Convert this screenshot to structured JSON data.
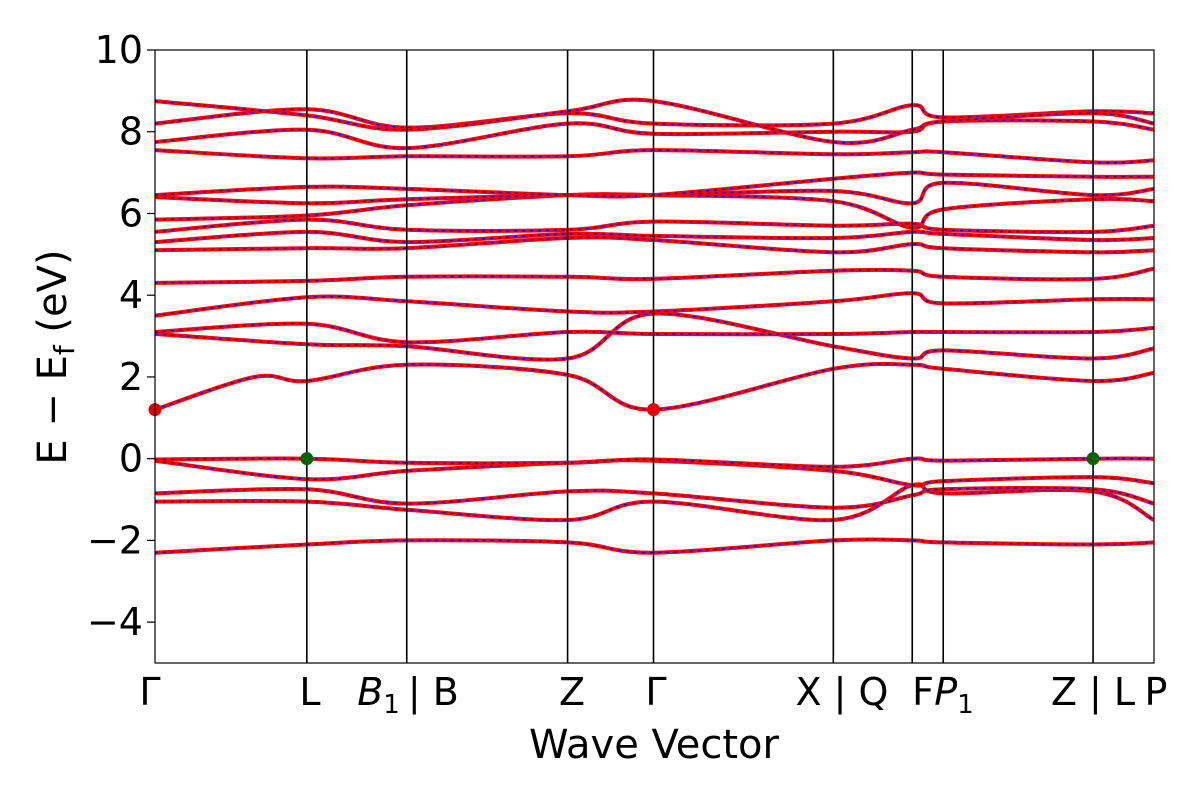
{
  "chart_data": {
    "type": "line",
    "title": "",
    "xlabel": "Wave Vector",
    "ylabel_main": "E − E",
    "ylabel_sub": "f",
    "ylabel_unit": " (eV)",
    "ylim": [
      -5,
      10
    ],
    "yticks": [
      "−4",
      "−2",
      "0",
      "2",
      "4",
      "6",
      "8",
      "10"
    ],
    "ytick_values": [
      -4,
      -2,
      0,
      2,
      4,
      6,
      8,
      10
    ],
    "xlim": [
      0,
      10
    ],
    "kpoints": [
      {
        "label": "Γ",
        "x": 0.0
      },
      {
        "label": "L",
        "x": 1.52
      },
      {
        "label": "B₁ | B",
        "x": 2.52
      },
      {
        "label": "Z",
        "x": 4.13
      },
      {
        "label": "Γ",
        "x": 4.99
      },
      {
        "label": "X | Q",
        "x": 6.79
      },
      {
        "label": "F",
        "x": 7.58
      },
      {
        "label": "P₁",
        "x": 7.89
      },
      {
        "label": "Z | L",
        "x": 9.39
      },
      {
        "label": "P",
        "x": 10.0
      }
    ],
    "kpoint_text": [
      "Γ",
      "L",
      "B",
      "1",
      "| B",
      "Z",
      "Γ",
      "X | Q",
      "F",
      "P",
      "1",
      "Z | L",
      "P"
    ],
    "series_style": {
      "outer_color": "#ff0000",
      "inner_color": "#0000ff"
    },
    "bands": [
      {
        "x": [
          0,
          1.52,
          2.52,
          4.13,
          4.99,
          6.79,
          7.58,
          7.89,
          9.39,
          10
        ],
        "y": [
          -2.3,
          -2.1,
          -2.0,
          -2.05,
          -2.3,
          -2.0,
          -2.0,
          -2.05,
          -2.1,
          -2.05
        ]
      },
      {
        "x": [
          0,
          1.52,
          2.52,
          4.13,
          4.99,
          6.79,
          7.58,
          7.89,
          9.39,
          10
        ],
        "y": [
          -1.05,
          -1.05,
          -1.25,
          -1.5,
          -1.05,
          -1.5,
          -0.65,
          -0.85,
          -0.8,
          -1.5
        ]
      },
      {
        "x": [
          0,
          1.52,
          2.52,
          4.13,
          4.99,
          6.79,
          7.58,
          7.89,
          9.39,
          10
        ],
        "y": [
          -0.85,
          -0.75,
          -1.1,
          -0.8,
          -0.85,
          -1.2,
          -0.9,
          -0.75,
          -0.75,
          -1.1
        ]
      },
      {
        "x": [
          0,
          1.52,
          2.52,
          4.13,
          4.99,
          6.79,
          7.58,
          7.89,
          9.39,
          10
        ],
        "y": [
          -0.05,
          -0.5,
          -0.3,
          -0.1,
          -0.05,
          -0.3,
          -0.65,
          -0.55,
          -0.45,
          -0.6
        ]
      },
      {
        "x": [
          0,
          1.52,
          2.52,
          4.13,
          4.99,
          6.79,
          7.58,
          7.89,
          9.39,
          10
        ],
        "y": [
          -0.02,
          0.0,
          -0.1,
          -0.1,
          -0.02,
          -0.2,
          0.0,
          -0.05,
          0.0,
          0.0
        ]
      },
      {
        "x": [
          0,
          1.0,
          1.52,
          2.52,
          4.13,
          4.99,
          6.79,
          7.58,
          7.89,
          9.39,
          10
        ],
        "y": [
          1.2,
          2.0,
          1.9,
          2.3,
          2.05,
          1.2,
          2.2,
          2.3,
          2.2,
          1.9,
          2.1
        ]
      },
      {
        "x": [
          0,
          1.52,
          2.52,
          4.13,
          4.99,
          6.79,
          7.58,
          7.89,
          9.39,
          10
        ],
        "y": [
          3.05,
          2.8,
          2.75,
          2.45,
          3.55,
          2.75,
          2.45,
          2.65,
          2.45,
          2.7
        ]
      },
      {
        "x": [
          0,
          1.52,
          2.52,
          4.13,
          4.99,
          6.79,
          7.58,
          7.89,
          9.39,
          10
        ],
        "y": [
          3.1,
          3.3,
          2.85,
          3.1,
          3.05,
          3.05,
          3.1,
          3.1,
          3.1,
          3.2
        ]
      },
      {
        "x": [
          0,
          1.52,
          2.52,
          4.13,
          4.99,
          6.79,
          7.58,
          7.89,
          9.39,
          10
        ],
        "y": [
          3.5,
          3.95,
          3.85,
          3.6,
          3.6,
          3.85,
          4.05,
          3.8,
          3.9,
          3.9
        ]
      },
      {
        "x": [
          0,
          1.52,
          2.52,
          4.13,
          4.99,
          6.79,
          7.58,
          7.89,
          9.39,
          10
        ],
        "y": [
          4.3,
          4.35,
          4.45,
          4.45,
          4.4,
          4.6,
          4.6,
          4.45,
          4.4,
          4.65
        ]
      },
      {
        "x": [
          0,
          1.52,
          2.52,
          4.13,
          4.99,
          6.79,
          7.58,
          7.89,
          9.39,
          10
        ],
        "y": [
          5.1,
          5.15,
          5.15,
          5.4,
          5.35,
          5.05,
          5.25,
          5.15,
          5.05,
          5.1
        ]
      },
      {
        "x": [
          0,
          1.52,
          2.52,
          4.13,
          4.99,
          6.79,
          7.58,
          7.89,
          9.39,
          10
        ],
        "y": [
          5.3,
          5.55,
          5.3,
          5.5,
          5.45,
          5.4,
          5.55,
          5.5,
          5.35,
          5.4
        ]
      },
      {
        "x": [
          0,
          1.52,
          2.52,
          4.13,
          4.99,
          6.79,
          7.58,
          7.89,
          9.39,
          10
        ],
        "y": [
          5.55,
          5.85,
          5.6,
          5.6,
          5.8,
          5.7,
          5.75,
          5.6,
          5.55,
          5.7
        ]
      },
      {
        "x": [
          0,
          1.52,
          2.52,
          4.13,
          4.99,
          6.79,
          7.58,
          7.89,
          9.39,
          10
        ],
        "y": [
          5.85,
          5.95,
          6.2,
          6.45,
          6.45,
          6.3,
          5.65,
          6.1,
          6.35,
          6.3
        ]
      },
      {
        "x": [
          0,
          1.52,
          2.52,
          4.13,
          4.99,
          6.79,
          7.58,
          7.89,
          9.39,
          10
        ],
        "y": [
          6.4,
          6.25,
          6.35,
          6.45,
          6.45,
          6.55,
          6.25,
          6.75,
          6.45,
          6.6
        ]
      },
      {
        "x": [
          0,
          1.52,
          2.52,
          4.13,
          4.99,
          6.79,
          7.58,
          7.89,
          9.39,
          10
        ],
        "y": [
          6.45,
          6.65,
          6.6,
          6.45,
          6.45,
          6.85,
          7.0,
          6.95,
          6.9,
          6.9
        ]
      },
      {
        "x": [
          0,
          1.52,
          2.52,
          4.13,
          4.99,
          6.79,
          7.58,
          7.89,
          9.39,
          10
        ],
        "y": [
          7.55,
          7.35,
          7.4,
          7.4,
          7.55,
          7.45,
          7.5,
          7.5,
          7.25,
          7.3
        ]
      },
      {
        "x": [
          0,
          1.52,
          2.52,
          4.13,
          4.99,
          6.79,
          7.58,
          7.89,
          9.39,
          10
        ],
        "y": [
          7.75,
          8.05,
          7.6,
          8.2,
          7.95,
          8.0,
          8.0,
          8.25,
          8.25,
          8.05
        ]
      },
      {
        "x": [
          0,
          1.52,
          2.52,
          4.13,
          4.99,
          6.79,
          7.58,
          7.89,
          9.39,
          10
        ],
        "y": [
          8.2,
          8.55,
          8.1,
          8.45,
          8.2,
          8.2,
          8.65,
          8.35,
          8.5,
          8.45
        ]
      },
      {
        "x": [
          0,
          1.52,
          2.52,
          4.13,
          4.99,
          6.79,
          7.58,
          7.89,
          9.39,
          10
        ],
        "y": [
          8.75,
          8.4,
          8.05,
          8.5,
          8.75,
          7.75,
          8.05,
          8.25,
          8.45,
          8.2
        ]
      }
    ],
    "markers": [
      {
        "x": 0.0,
        "y": 1.2,
        "color": "#e00000"
      },
      {
        "x": 4.99,
        "y": 1.2,
        "color": "#e00000"
      },
      {
        "x": 1.52,
        "y": 0.0,
        "color": "#006400"
      },
      {
        "x": 9.39,
        "y": 0.0,
        "color": "#006400"
      }
    ],
    "grid": false,
    "legend": "none"
  }
}
